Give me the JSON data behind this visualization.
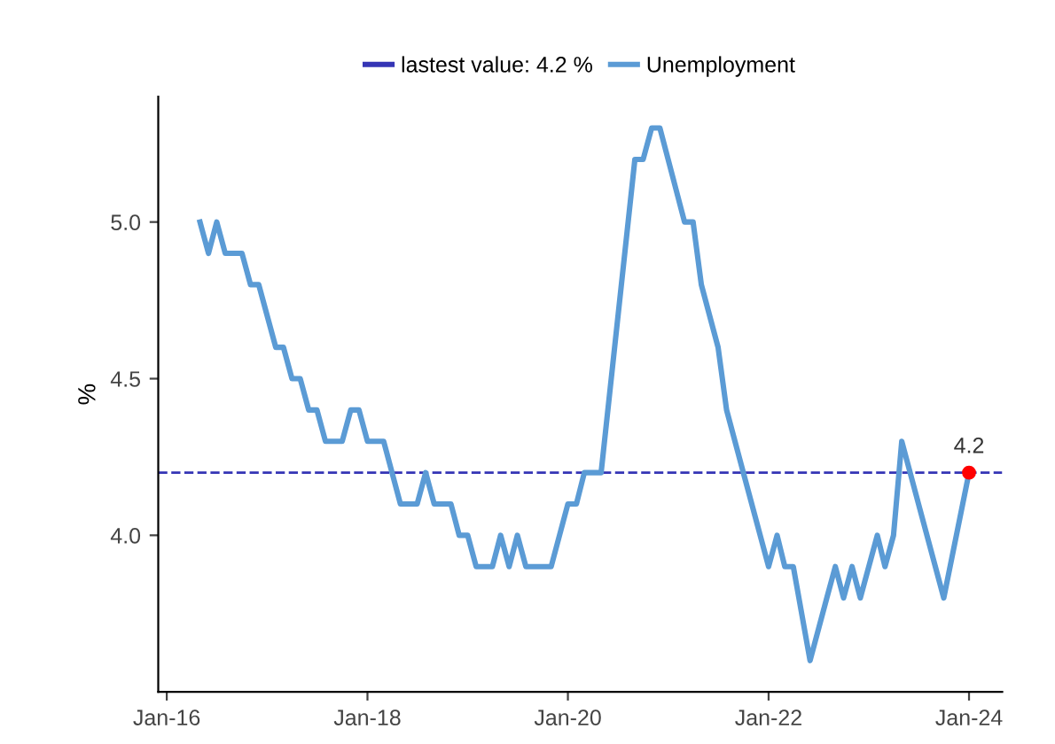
{
  "chart_data": {
    "type": "line",
    "ylabel": "%",
    "xlim": [
      "2015-12",
      "2024-05"
    ],
    "ylim": [
      3.5,
      5.4
    ],
    "xticks": [
      {
        "value": "2016-01",
        "label": "Jan-16"
      },
      {
        "value": "2018-01",
        "label": "Jan-18"
      },
      {
        "value": "2020-01",
        "label": "Jan-20"
      },
      {
        "value": "2022-01",
        "label": "Jan-22"
      },
      {
        "value": "2024-01",
        "label": "Jan-24"
      }
    ],
    "yticks": [
      {
        "value": 4,
        "label": "4.0"
      },
      {
        "value": 4.5,
        "label": "4.5"
      },
      {
        "value": 5,
        "label": "5.0"
      }
    ],
    "grid": false,
    "legend": "top",
    "line_style": "solid",
    "series": [
      {
        "name": "Unemployment",
        "marker": "none",
        "color": "#5b9bd5",
        "x": [
          "2016-05",
          "2016-06",
          "2016-07",
          "2016-08",
          "2016-10",
          "2016-11",
          "2016-12",
          "2017-02",
          "2017-03",
          "2017-04",
          "2017-05",
          "2017-06",
          "2017-07",
          "2017-08",
          "2017-10",
          "2017-11",
          "2017-12",
          "2018-01",
          "2018-03",
          "2018-05",
          "2018-07",
          "2018-08",
          "2018-09",
          "2018-11",
          "2018-12",
          "2019-01",
          "2019-02",
          "2019-04",
          "2019-05",
          "2019-06",
          "2019-07",
          "2019-08",
          "2019-11",
          "2020-01",
          "2020-02",
          "2020-03",
          "2020-05",
          "2020-09",
          "2020-10",
          "2020-11",
          "2020-12",
          "2021-03",
          "2021-04",
          "2021-05",
          "2021-07",
          "2021-08",
          "2021-10",
          "2022-01",
          "2022-02",
          "2022-03",
          "2022-04",
          "2022-06",
          "2022-08",
          "2022-09",
          "2022-10",
          "2022-11",
          "2022-12",
          "2023-02",
          "2023-03",
          "2023-04",
          "2023-05",
          "2023-07",
          "2023-10",
          "2024-01"
        ],
        "values": [
          5.0,
          4.9,
          5.0,
          4.9,
          4.9,
          4.8,
          4.8,
          4.6,
          4.6,
          4.5,
          4.5,
          4.4,
          4.4,
          4.3,
          4.3,
          4.4,
          4.4,
          4.3,
          4.3,
          4.1,
          4.1,
          4.2,
          4.1,
          4.1,
          4.0,
          4.0,
          3.9,
          3.9,
          4.0,
          3.9,
          4.0,
          3.9,
          3.9,
          4.1,
          4.1,
          4.2,
          4.2,
          5.2,
          5.2,
          5.3,
          5.3,
          5.0,
          5.0,
          4.8,
          4.6,
          4.4,
          4.2,
          3.9,
          4.0,
          3.9,
          3.9,
          3.6,
          3.8,
          3.9,
          3.8,
          3.9,
          3.8,
          4.0,
          3.9,
          4.0,
          4.3,
          4.1,
          3.8,
          4.2
        ]
      },
      {
        "type": "scatter",
        "marker": "circle",
        "color": "#ff0000",
        "x": [
          "2024-01"
        ],
        "values": [
          4.2
        ]
      }
    ],
    "ref_lines": [
      {
        "axis": "y",
        "value": 4.2,
        "label": "lastest value: 4.2 %",
        "color": "#3535b5",
        "line_style": "dashed"
      }
    ],
    "annotations": [
      {
        "text": "4.2",
        "x": "2024-01",
        "y": 4.2
      }
    ]
  }
}
